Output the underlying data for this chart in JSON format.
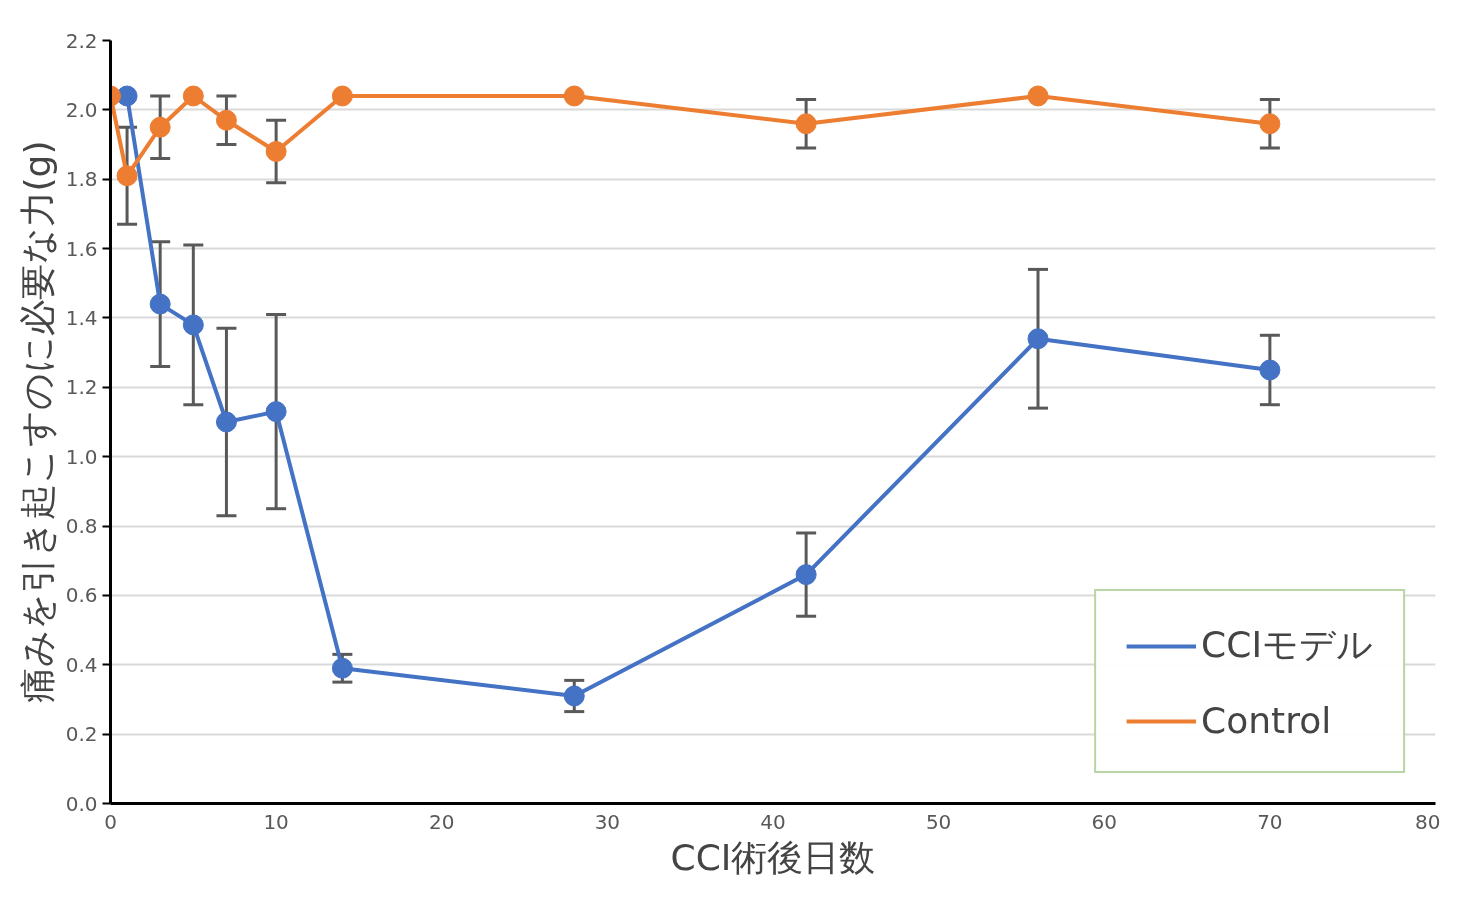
{
  "chart_data": {
    "type": "line",
    "xlabel": "CCI術後日数",
    "ylabel": "痛みを引き起こすのに必要な力(g)",
    "x": [
      0,
      1,
      3,
      5,
      7,
      10,
      14,
      28,
      42,
      56,
      70
    ],
    "series": [
      {
        "name": "CCIモデル",
        "color": "#4472c4",
        "values": [
          null,
          2.04,
          1.44,
          1.38,
          1.1,
          1.13,
          0.39,
          0.31,
          0.66,
          1.34,
          1.25
        ],
        "errors": [
          null,
          null,
          0.18,
          0.23,
          0.27,
          0.28,
          0.04,
          0.045,
          0.12,
          0.2,
          0.1
        ]
      },
      {
        "name": "Control",
        "color": "#ed7d31",
        "values": [
          2.04,
          1.81,
          1.95,
          2.04,
          1.97,
          1.88,
          2.04,
          2.04,
          1.96,
          2.04,
          1.96
        ],
        "errors": [
          null,
          0.14,
          0.09,
          null,
          0.07,
          0.09,
          null,
          null,
          0.07,
          null,
          0.07
        ]
      }
    ],
    "xlim": [
      0,
      80
    ],
    "xticks": [
      0,
      10,
      20,
      30,
      40,
      50,
      60,
      70,
      80
    ],
    "ylim": [
      0,
      2.2
    ],
    "yticks": [
      {
        "value": 0,
        "label": "0.0"
      },
      {
        "value": 0.2,
        "label": "0.2"
      },
      {
        "value": 0.4,
        "label": "0.4"
      },
      {
        "value": 0.6,
        "label": "0.6"
      },
      {
        "value": 0.8,
        "label": "0.8"
      },
      {
        "value": 1.0,
        "label": "1.0"
      },
      {
        "value": 1.2,
        "label": "1.2"
      },
      {
        "value": 1.4,
        "label": "1.4"
      },
      {
        "value": 1.6,
        "label": "1.6"
      },
      {
        "value": 1.8,
        "label": "1.8"
      },
      {
        "value": 2.0,
        "label": "2.0"
      },
      {
        "value": 2.2,
        "label": "2.2"
      }
    ],
    "grid": "y",
    "legend": "bottom right",
    "marker": "circle",
    "line_style": "solid"
  }
}
